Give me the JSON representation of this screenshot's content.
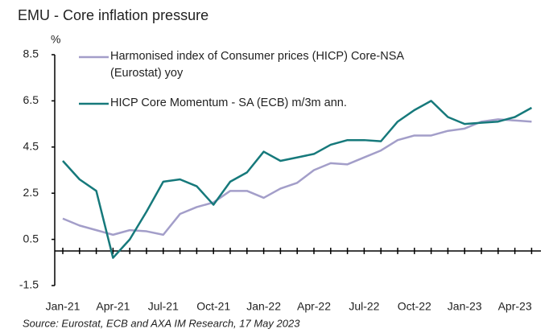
{
  "chart_data": {
    "type": "line",
    "title": "EMU - Core inflation pressure",
    "y_unit": "%",
    "source": "Source: Eurostat, ECB and AXA IM Research, 17 May 2023",
    "categories": [
      "Jan-21",
      null,
      null,
      "Apr-21",
      null,
      null,
      "Jul-21",
      null,
      null,
      "Oct-21",
      null,
      null,
      "Jan-22",
      null,
      null,
      "Apr-22",
      null,
      null,
      "Jul-22",
      null,
      null,
      "Oct-22",
      null,
      null,
      "Jan-23",
      null,
      null,
      "Apr-23",
      null
    ],
    "series": [
      {
        "name": "Harmonised index of Consumer prices (HICP) Core-NSA (Eurostat) yoy",
        "color": "#a39ec9",
        "values": [
          1.4,
          1.1,
          0.9,
          0.7,
          0.9,
          0.85,
          0.7,
          1.6,
          1.9,
          2.1,
          2.6,
          2.6,
          2.3,
          2.7,
          2.95,
          3.5,
          3.8,
          3.75,
          4.05,
          4.35,
          4.8,
          5.0,
          5.0,
          5.2,
          5.3,
          5.6,
          5.7,
          5.65,
          5.6
        ]
      },
      {
        "name": "HICP Core Momentum - SA (ECB) m/3m ann.",
        "color": "#16797b",
        "values": [
          3.9,
          3.1,
          2.6,
          -0.3,
          0.5,
          1.7,
          3.0,
          3.1,
          2.8,
          2.0,
          3.0,
          3.4,
          4.3,
          3.9,
          4.05,
          4.2,
          4.6,
          4.8,
          4.8,
          4.75,
          5.6,
          6.1,
          6.5,
          5.8,
          5.5,
          5.55,
          5.6,
          5.8,
          6.2
        ]
      }
    ],
    "ylim": [
      -1.5,
      8.5
    ],
    "yticks": [
      8.5,
      6.5,
      4.5,
      2.5,
      0.5,
      -1.5
    ],
    "grid": false,
    "legend": "top-left"
  }
}
